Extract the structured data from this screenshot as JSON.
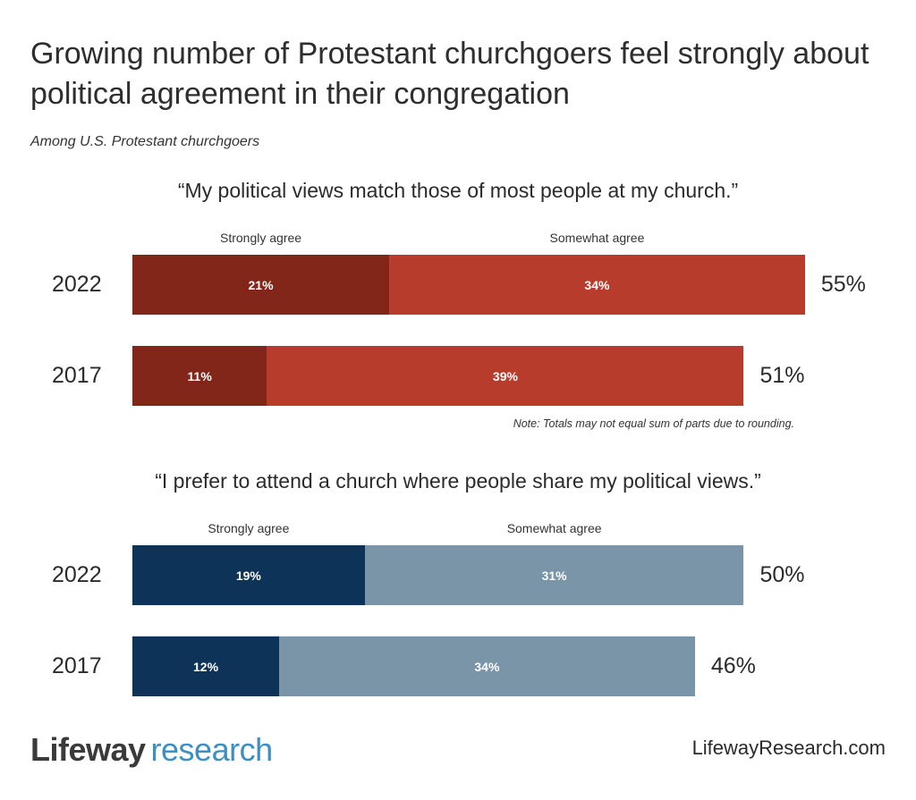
{
  "title": "Growing number of Protestant churchgoers feel strongly about political agreement in their congregation",
  "subtitle": "Among U.S. Protestant churchgoers",
  "note": "Note: Totals may not equal sum of parts due to rounding.",
  "footer": {
    "logo_text": "Lifeway research",
    "logo_part1": "Lifeway",
    "logo_part2": "research",
    "website": "LifewayResearch.com"
  },
  "chart_data": [
    {
      "type": "bar",
      "orientation": "horizontal-stacked",
      "title": "“My political views match those of most people at my church.”",
      "categories": [
        "2022",
        "2017"
      ],
      "series": [
        {
          "name": "Strongly agree",
          "values": [
            21,
            11
          ],
          "color": "#82261a"
        },
        {
          "name": "Somewhat agree",
          "values": [
            34,
            39
          ],
          "color": "#b83c2b"
        }
      ],
      "totals": [
        "55%",
        "51%"
      ],
      "labels": [
        [
          "21%",
          "34%"
        ],
        [
          "11%",
          "39%"
        ]
      ]
    },
    {
      "type": "bar",
      "orientation": "horizontal-stacked",
      "title": "“I prefer to attend a church where people share my political views.”",
      "categories": [
        "2022",
        "2017"
      ],
      "series": [
        {
          "name": "Strongly agree",
          "values": [
            19,
            12
          ],
          "color": "#0e3358"
        },
        {
          "name": "Somewhat agree",
          "values": [
            31,
            34
          ],
          "color": "#7a94a8"
        }
      ],
      "totals": [
        "50%",
        "46%"
      ],
      "labels": [
        [
          "19%",
          "31%"
        ],
        [
          "12%",
          "34%"
        ]
      ]
    }
  ]
}
